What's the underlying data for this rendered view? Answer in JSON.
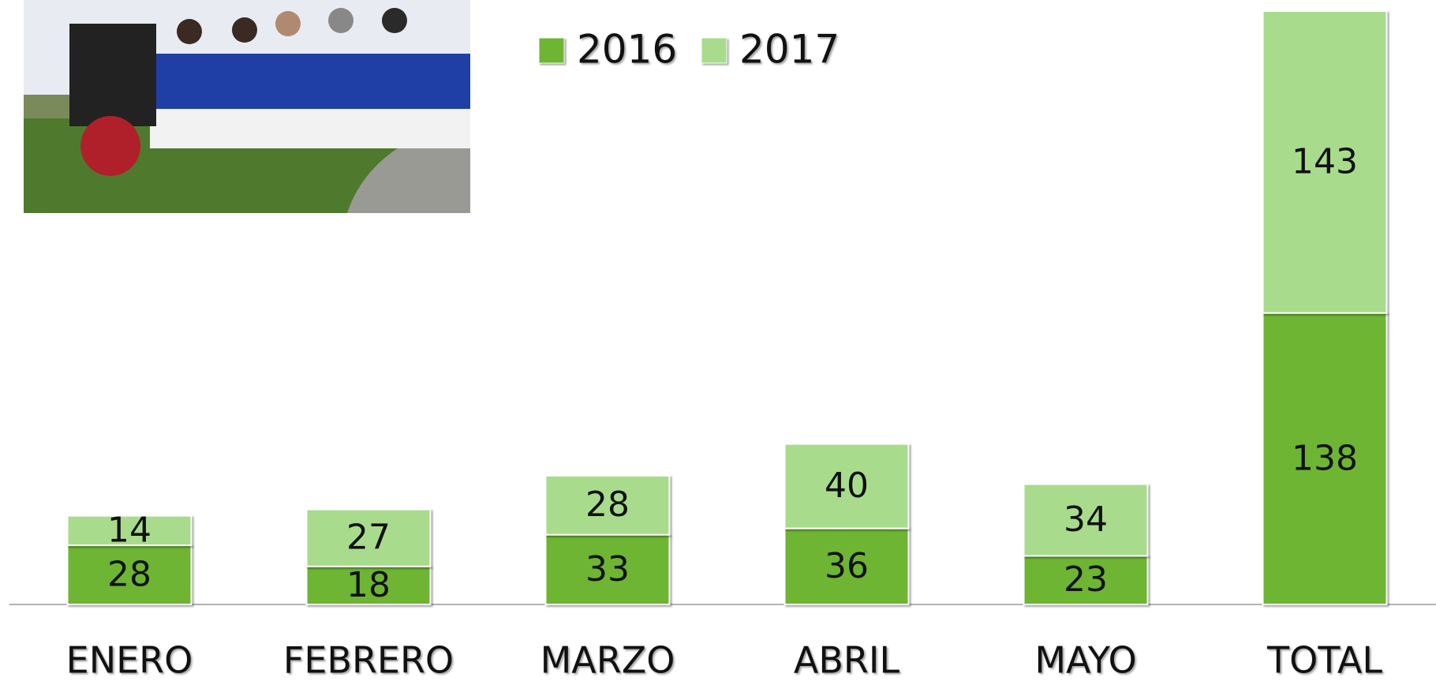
{
  "chart_data": {
    "type": "stacked_bar",
    "categories": [
      "ENERO",
      "FEBRERO",
      "MARZO",
      "ABRIL",
      "MAYO",
      "TOTAL"
    ],
    "series": [
      {
        "name": "2016",
        "color": "#6db533",
        "values": [
          28,
          18,
          33,
          36,
          23,
          138
        ]
      },
      {
        "name": "2017",
        "color": "#a8dc8c",
        "values": [
          14,
          27,
          28,
          40,
          34,
          143
        ]
      }
    ],
    "legend": "top"
  }
}
